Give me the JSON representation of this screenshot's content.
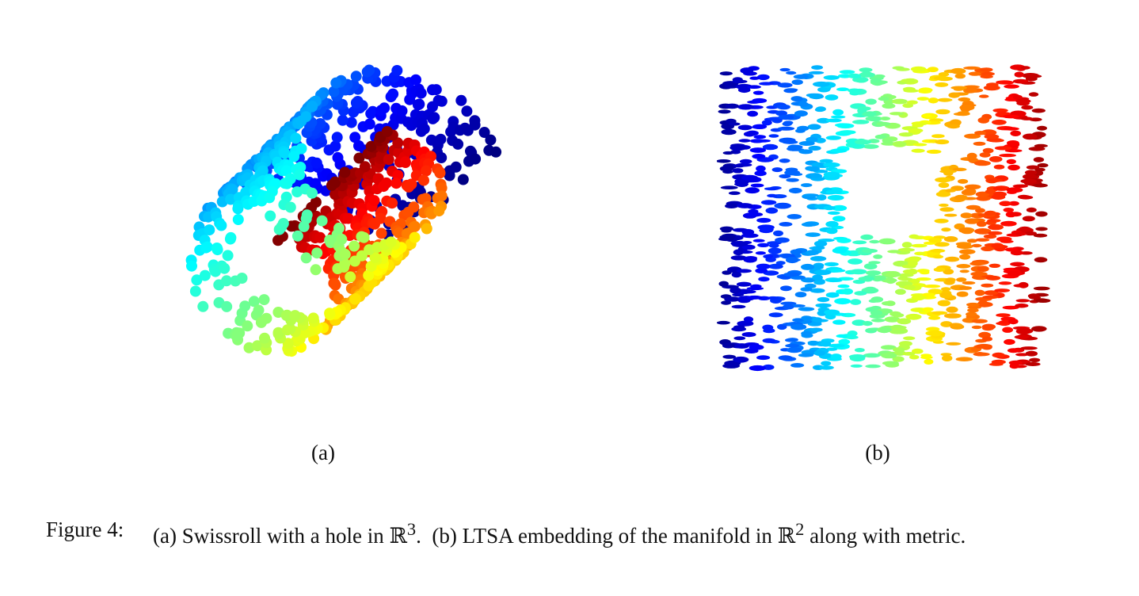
{
  "figure": {
    "number_label": "Figure 4:",
    "caption_parts": {
      "a_marker": "(a)",
      "a_text": "Swissroll with a hole in",
      "space_3d": "ℝ",
      "exp_3d": "3",
      "b_marker": "(b)",
      "b_text": "LTSA embedding of the manifold in",
      "space_2d": "ℝ",
      "exp_2d": "2",
      "tail": "along with metric."
    }
  },
  "panels": [
    {
      "id": "a",
      "label": "(a)"
    },
    {
      "id": "b",
      "label": "(b)"
    }
  ],
  "chart_data": [
    {
      "type": "scatter",
      "panel": "(a)",
      "description_of_mark_colors": "jet colormap over the roll parameter",
      "colormap": [
        "#00008f",
        "#0000ff",
        "#0080ff",
        "#00ffff",
        "#80ff80",
        "#ffff00",
        "#ff8000",
        "#ff0000",
        "#800000"
      ],
      "series": [
        {
          "points_xyz": [
            [
              0.0,
              0.2,
              0.9
            ],
            [
              0.02,
              0.6,
              0.8
            ],
            [
              0.05,
              0.3,
              0.7
            ],
            [
              0.08,
              0.8,
              0.6
            ],
            [
              0.11,
              0.4,
              0.5
            ],
            [
              0.14,
              0.7,
              0.4
            ],
            [
              0.17,
              0.2,
              0.3
            ],
            [
              0.2,
              0.5,
              0.2
            ],
            [
              0.23,
              0.9,
              0.1
            ],
            [
              0.26,
              0.3,
              0.1
            ],
            [
              0.29,
              0.6,
              0.2
            ],
            [
              0.32,
              0.1,
              0.3
            ],
            [
              0.35,
              0.8,
              0.4
            ],
            [
              0.38,
              0.4,
              0.5
            ],
            [
              0.41,
              0.7,
              0.6
            ],
            [
              0.44,
              0.2,
              0.7
            ],
            [
              0.47,
              0.5,
              0.8
            ],
            [
              0.5,
              0.9,
              0.9
            ],
            [
              0.53,
              0.3,
              0.8
            ],
            [
              0.56,
              0.6,
              0.7
            ],
            [
              0.59,
              0.1,
              0.6
            ],
            [
              0.62,
              0.8,
              0.5
            ],
            [
              0.65,
              0.4,
              0.4
            ],
            [
              0.68,
              0.7,
              0.3
            ],
            [
              0.71,
              0.2,
              0.2
            ],
            [
              0.74,
              0.5,
              0.1
            ],
            [
              0.77,
              0.9,
              0.2
            ],
            [
              0.8,
              0.3,
              0.3
            ],
            [
              0.83,
              0.6,
              0.4
            ],
            [
              0.86,
              0.1,
              0.5
            ],
            [
              0.89,
              0.8,
              0.6
            ],
            [
              0.92,
              0.4,
              0.7
            ],
            [
              0.95,
              0.7,
              0.8
            ],
            [
              0.98,
              0.2,
              0.9
            ]
          ]
        }
      ]
    },
    {
      "type": "scatter",
      "panel": "(b)",
      "description_of_mark_colors": "jet colormap over the horizontal coordinate",
      "series": [
        {
          "points_xy": [
            [
              0.02,
              0.05
            ],
            [
              0.05,
              0.9
            ],
            [
              0.08,
              0.4
            ],
            [
              0.1,
              0.7
            ],
            [
              0.13,
              0.2
            ],
            [
              0.16,
              0.6
            ],
            [
              0.19,
              0.95
            ],
            [
              0.22,
              0.3
            ],
            [
              0.25,
              0.8
            ],
            [
              0.28,
              0.1
            ],
            [
              0.31,
              0.85
            ],
            [
              0.34,
              0.25
            ],
            [
              0.37,
              0.92
            ],
            [
              0.4,
              0.15
            ],
            [
              0.43,
              0.78
            ],
            [
              0.46,
              0.12
            ],
            [
              0.49,
              0.88
            ],
            [
              0.52,
              0.22
            ],
            [
              0.55,
              0.9
            ],
            [
              0.58,
              0.18
            ],
            [
              0.61,
              0.82
            ],
            [
              0.64,
              0.3
            ],
            [
              0.67,
              0.7
            ],
            [
              0.7,
              0.45
            ],
            [
              0.73,
              0.55
            ],
            [
              0.76,
              0.1
            ],
            [
              0.79,
              0.92
            ],
            [
              0.82,
              0.35
            ],
            [
              0.85,
              0.65
            ],
            [
              0.88,
              0.2
            ],
            [
              0.91,
              0.8
            ],
            [
              0.94,
              0.5
            ],
            [
              0.97,
              0.05
            ],
            [
              0.99,
              0.95
            ]
          ]
        }
      ]
    }
  ]
}
